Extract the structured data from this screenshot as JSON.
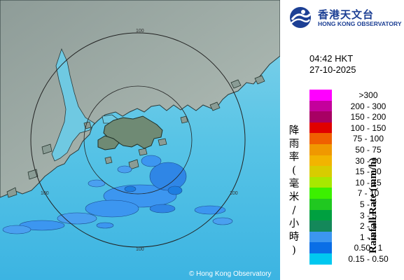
{
  "header": {
    "org_name_zh": "香港天文台",
    "org_name_en": "HONG KONG OBSERVATORY",
    "time": "04:42 HKT",
    "date": "27-10-2025"
  },
  "map": {
    "range_ring_labels": [
      "100",
      "100",
      "100",
      "100"
    ],
    "copyright": "© Hong Kong Observatory",
    "sea_color": "#5cc6e6",
    "land_color": "#9aa8a2"
  },
  "legend": {
    "title_zh": "降雨率(毫米/小時)",
    "title_en": "Rainfall Rate (mm/h)",
    "bins": [
      {
        "label": ">300",
        "color": "#ff00ff"
      },
      {
        "label": "200 - 300",
        "color": "#c4009c"
      },
      {
        "label": "150 - 200",
        "color": "#a80064"
      },
      {
        "label": "100 - 150",
        "color": "#e00000"
      },
      {
        "label": "75 - 100",
        "color": "#f06000"
      },
      {
        "label": "50 - 75",
        "color": "#f09800"
      },
      {
        "label": "30 - 50",
        "color": "#f2b400"
      },
      {
        "label": "15 - 30",
        "color": "#d8cc00"
      },
      {
        "label": "10 - 15",
        "color": "#a8e800"
      },
      {
        "label": "7 - 10",
        "color": "#3cf000"
      },
      {
        "label": "5 - 7",
        "color": "#20c820"
      },
      {
        "label": "3 - 5",
        "color": "#00a040"
      },
      {
        "label": "2 - 3",
        "color": "#14885a"
      },
      {
        "label": "1 - 2",
        "color": "#3c96f0"
      },
      {
        "label": "0.50 - 1",
        "color": "#0a6ee6"
      },
      {
        "label": "0.15 - 0.50",
        "color": "#00c8f0"
      }
    ]
  }
}
